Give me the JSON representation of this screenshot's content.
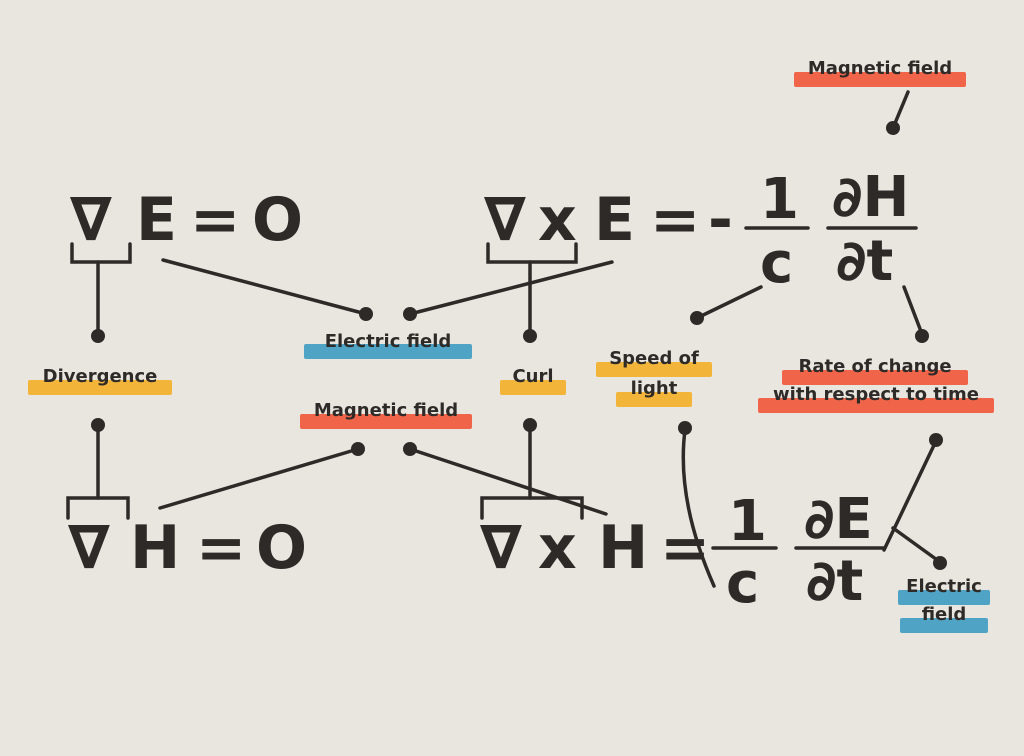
{
  "equations": {
    "eq1": {
      "operator": "∇",
      "field": "E",
      "equals": "=",
      "rhs": "O"
    },
    "eq2": {
      "operator": "∇",
      "cross": "x",
      "field": "E",
      "equals": "=",
      "sign": "-",
      "coef_num": "1",
      "coef_den": "c",
      "deriv_num": "∂H",
      "deriv_den": "∂t"
    },
    "eq3": {
      "operator": "∇",
      "field": "H",
      "equals": "=",
      "rhs": "O"
    },
    "eq4": {
      "operator": "∇",
      "cross": "x",
      "field": "H",
      "equals": "=",
      "coef_num": "1",
      "coef_den": "c",
      "deriv_num": "∂E",
      "deriv_den": "∂t"
    }
  },
  "labels": {
    "magnetic_field_top": "Magnetic field",
    "electric_field_mid": "Electric field",
    "divergence": "Divergence",
    "curl": "Curl",
    "speed_of_light_1": "Speed of",
    "speed_of_light_2": "light",
    "rate_of_change_1": "Rate of change",
    "rate_of_change_2": "with respect to time",
    "magnetic_field_mid": "Magnetic field",
    "electric_field_bottom_1": "Electric",
    "electric_field_bottom_2": "field"
  },
  "colors": {
    "background": "#E9E5DF",
    "ink": "#2E2A28",
    "yellow_highlight": "#F2B53A",
    "red_highlight": "#F0654A",
    "blue_highlight": "#4FA3C4"
  }
}
